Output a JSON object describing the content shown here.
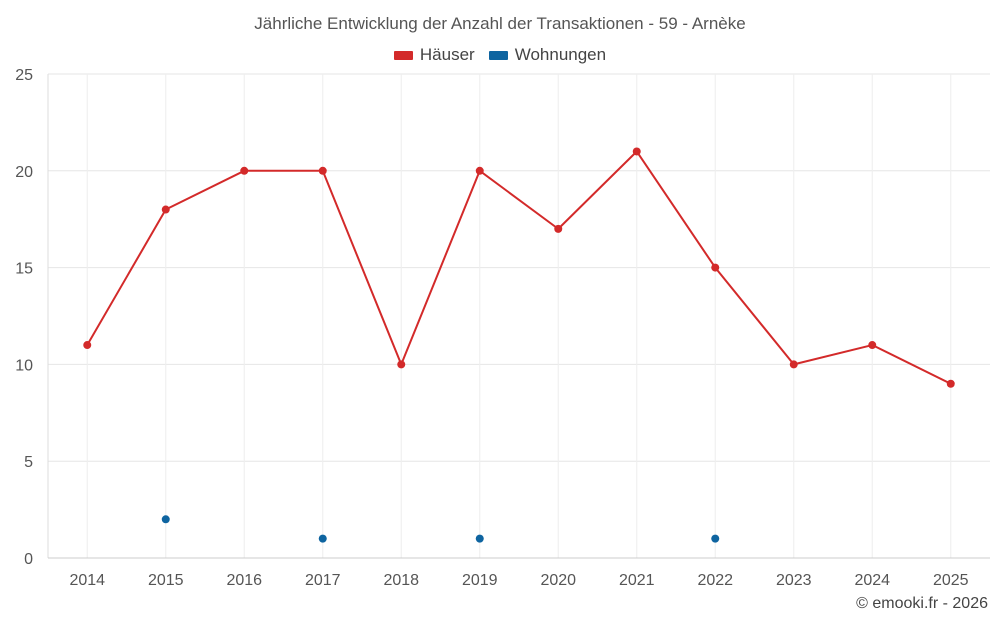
{
  "chart_data": {
    "type": "line",
    "title": "Jährliche Entwicklung der Anzahl der Transaktionen - 59 - Arnèke",
    "xlabel": "",
    "ylabel": "",
    "categories": [
      "2014",
      "2015",
      "2016",
      "2017",
      "2018",
      "2019",
      "2020",
      "2021",
      "2022",
      "2023",
      "2024",
      "2025"
    ],
    "ylim": [
      0,
      25
    ],
    "yticks": [
      0,
      5,
      10,
      15,
      20,
      25
    ],
    "grid": true,
    "legend_position": "top-center",
    "series": [
      {
        "name": "Häuser",
        "color": "#d32a2a",
        "style": "line-with-markers",
        "values": [
          11,
          18,
          20,
          20,
          10,
          20,
          17,
          21,
          15,
          10,
          11,
          9
        ]
      },
      {
        "name": "Wohnungen",
        "color": "#0e64a0",
        "style": "markers-only",
        "values": [
          null,
          2,
          null,
          1,
          null,
          1,
          null,
          null,
          1,
          null,
          null,
          null
        ]
      }
    ]
  },
  "credit": "© emooki.fr - 2026"
}
